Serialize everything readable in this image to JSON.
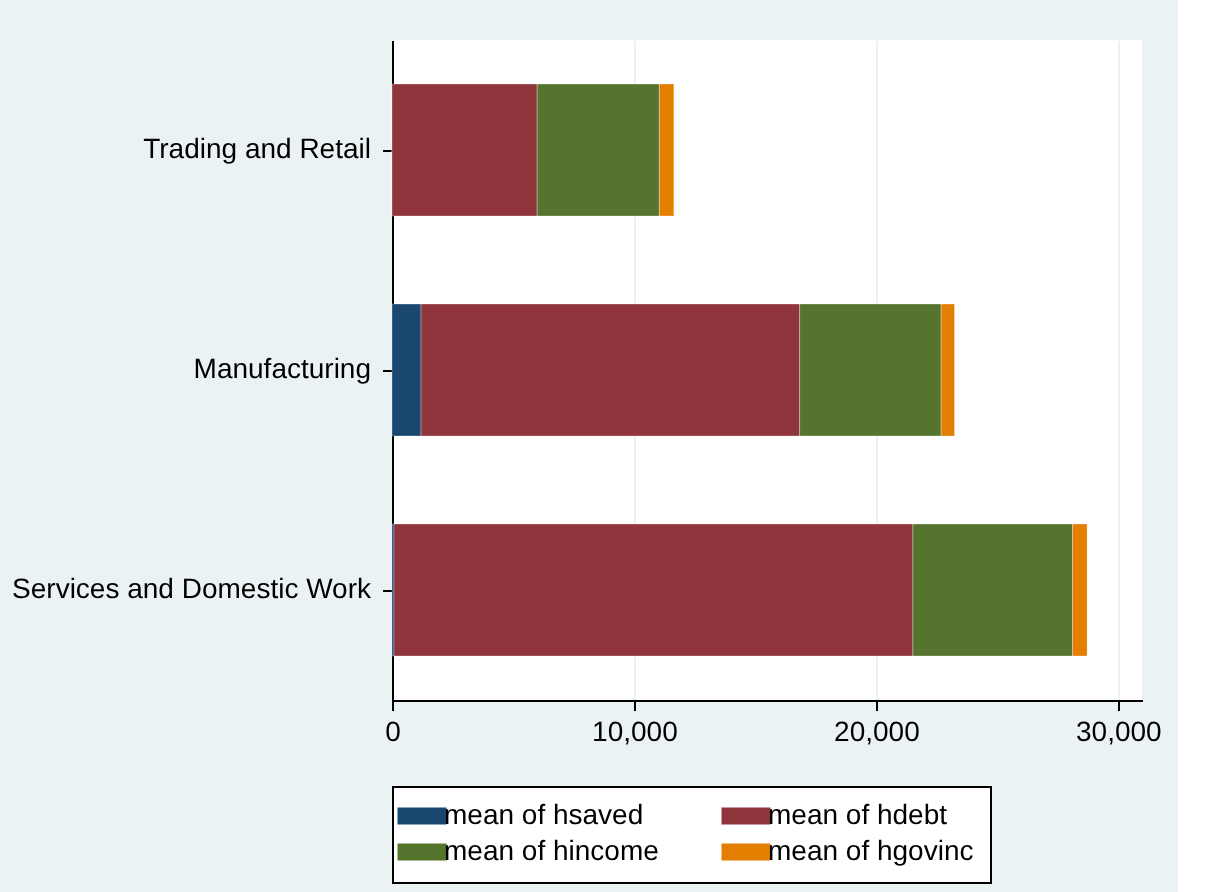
{
  "chart_data": {
    "type": "bar",
    "orientation": "horizontal",
    "stacked": true,
    "categories": [
      "Trading and Retail",
      "Manufacturing",
      "Services and Domestic Work"
    ],
    "series": [
      {
        "name": "mean of hsaved",
        "color": "#1a476f",
        "values": [
          0,
          1200,
          80
        ]
      },
      {
        "name": "mean of hdebt",
        "color": "#90353b",
        "values": [
          6000,
          15650,
          21450
        ]
      },
      {
        "name": "mean of hincome",
        "color": "#55752f",
        "values": [
          5050,
          5850,
          6600
        ]
      },
      {
        "name": "mean of hgovinc",
        "color": "#e37e00",
        "values": [
          600,
          550,
          600
        ]
      }
    ],
    "xlim": [
      0,
      31000
    ],
    "xticks": [
      {
        "value": 0,
        "label": "0"
      },
      {
        "value": 10000,
        "label": "10,000"
      },
      {
        "value": 20000,
        "label": "20,000"
      },
      {
        "value": 30000,
        "label": "30,000"
      }
    ],
    "grid": "x",
    "legend": "bottom"
  }
}
